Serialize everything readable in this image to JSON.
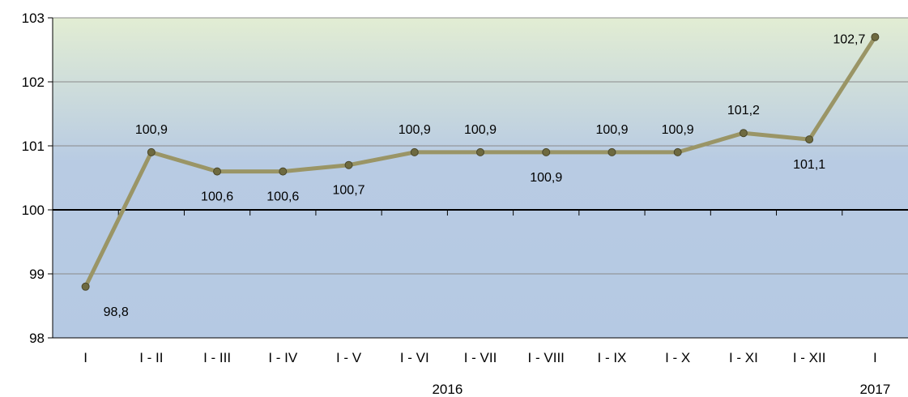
{
  "chart_data": {
    "type": "line",
    "categories": [
      "I",
      "I - II",
      "I - III",
      "I - IV",
      "I - V",
      "I - VI",
      "I - VII",
      "I - VIII",
      "I - IX",
      "I - X",
      "I - XI",
      "I - XII",
      "I"
    ],
    "values": [
      98.8,
      100.9,
      100.6,
      100.6,
      100.7,
      100.9,
      100.9,
      100.9,
      100.9,
      100.9,
      101.2,
      101.1,
      102.7
    ],
    "data_labels": [
      "98,8",
      "100,9",
      "100,6",
      "100,6",
      "100,7",
      "100,9",
      "100,9",
      "100,9",
      "100,9",
      "100,9",
      "101,2",
      "101,1",
      "102,7"
    ],
    "label_position": [
      "below",
      "above",
      "below",
      "below",
      "below",
      "above",
      "above",
      "below",
      "above",
      "above",
      "above",
      "below",
      "left"
    ],
    "y_ticks": [
      "98",
      "99",
      "100",
      "101",
      "102",
      "103"
    ],
    "ylim": [
      98,
      103
    ],
    "baseline": 100,
    "year_labels": [
      {
        "text": "2016",
        "under_category": 5.5
      },
      {
        "text": "2017",
        "under_category": 12
      }
    ],
    "grid": true,
    "legend": "none",
    "colors": {
      "line": "#9a9566",
      "marker": "#6e6a40",
      "bg_top": "#e2edd3",
      "bg_bottom": "#b5c9e3",
      "gridline": "#8a8a8a",
      "axis": "#000000"
    }
  }
}
